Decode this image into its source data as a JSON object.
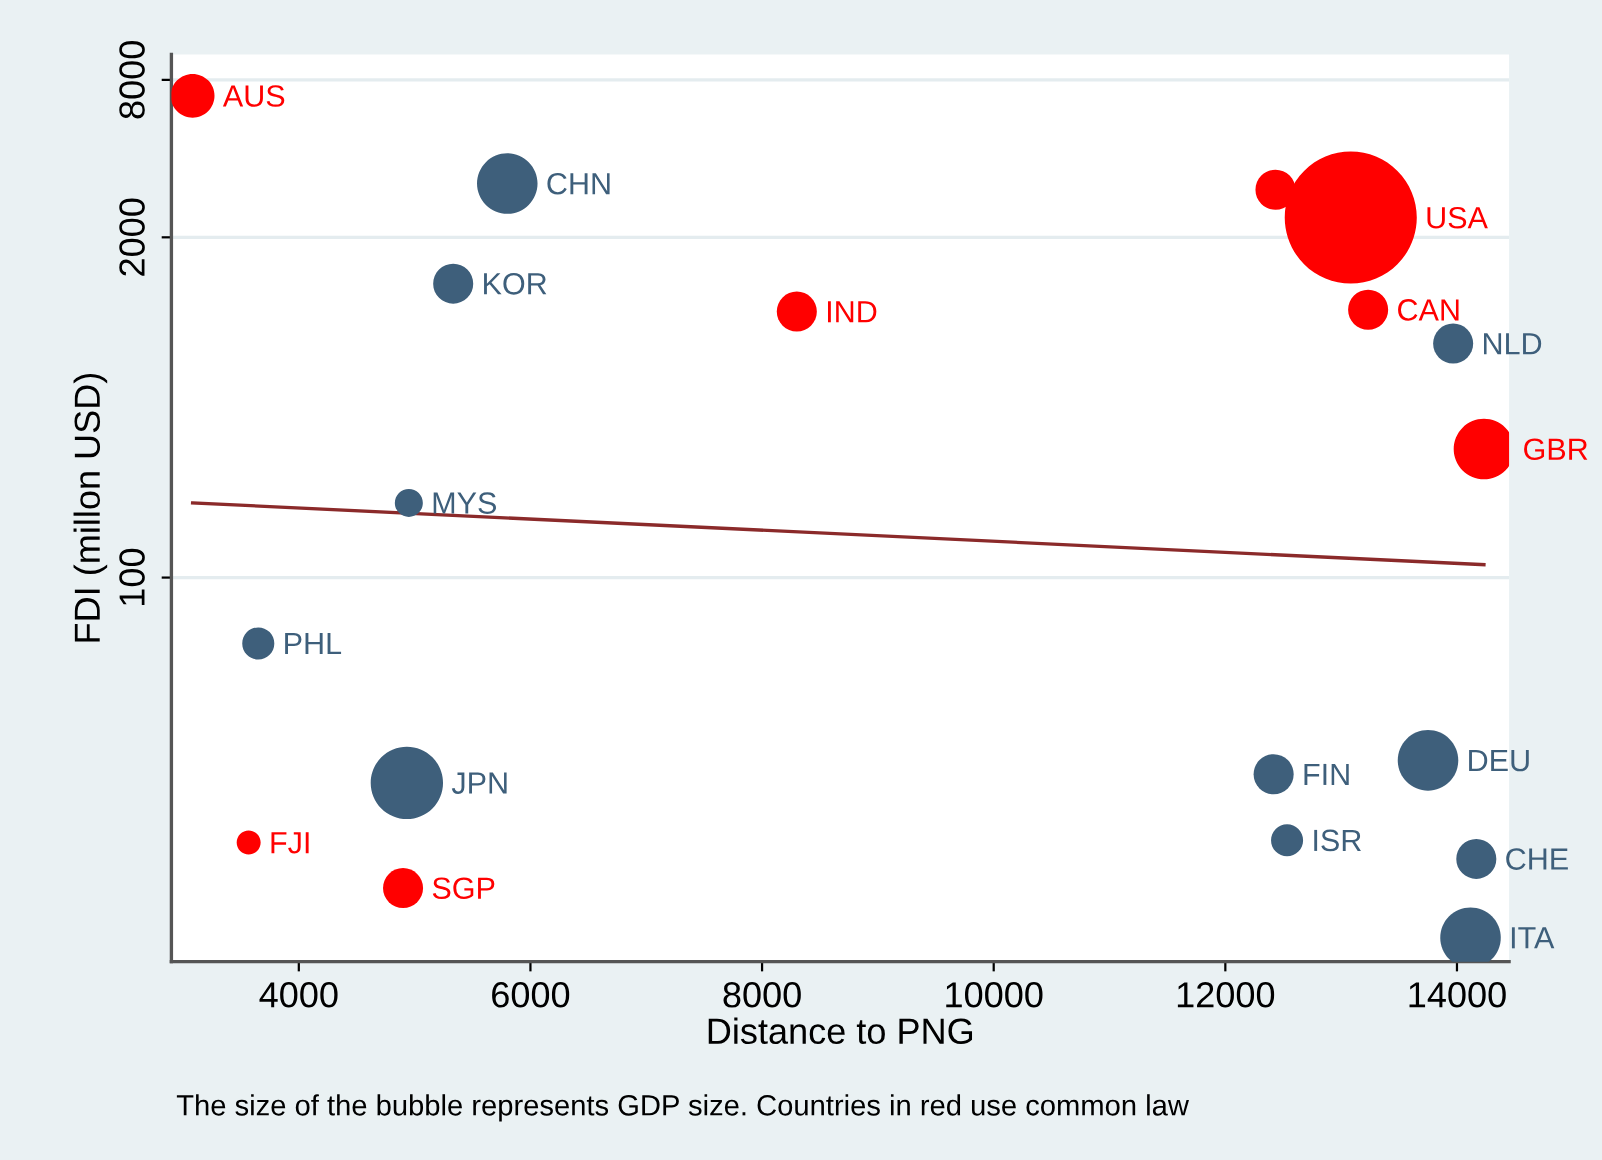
{
  "chart_data": {
    "type": "bubble",
    "xlabel": "Distance to PNG",
    "ylabel": "FDI (millon USD)",
    "xlim": [
      2900,
      14450
    ],
    "xticks": [
      4000,
      6000,
      8000,
      10000,
      12000,
      14000
    ],
    "ylim": [
      3.4,
      10000
    ],
    "yticks": [
      100,
      2000,
      8000
    ],
    "log": "y",
    "grid": "y",
    "series": [
      {
        "color": "#ff0000",
        "x": [
          3083,
          3567,
          4900,
          8300,
          12433,
          13083,
          13233,
          14233
        ],
        "values": [
          6950,
          9.7,
          6.5,
          1040,
          3040,
          2380,
          1057,
          310
        ],
        "sizes": [
          0.11,
          0.033,
          0.092,
          0.092,
          0.092,
          1,
          0.092,
          0.21
        ]
      },
      {
        "color": "#3e5f7b",
        "x": [
          5800,
          5333,
          4950,
          3650,
          4933,
          13967,
          12417,
          13750,
          12533,
          14167,
          14117
        ],
        "values": [
          3210,
          1330,
          193,
          56,
          16.4,
          785,
          17.7,
          20,
          9.9,
          8.4,
          4.2
        ],
        "sizes": [
          0.21,
          0.092,
          0.045,
          0.059,
          0.3,
          0.092,
          0.092,
          0.21,
          0.059,
          0.092,
          0.21
        ]
      },
      {
        "type": "line",
        "color": "#8b2a2a",
        "x": [
          3083,
          14233
        ],
        "values": [
          193,
          112
        ]
      }
    ],
    "annotations": [
      {
        "text": "AUS",
        "x": 3083,
        "y": 6950
      },
      {
        "text": "FJI",
        "x": 3567,
        "y": 9.7
      },
      {
        "text": "SGP",
        "x": 4900,
        "y": 6.5
      },
      {
        "text": "IND",
        "x": 8300,
        "y": 1040
      },
      {
        "text": "USA",
        "x": 13083,
        "y": 2380
      },
      {
        "text": "CAN",
        "x": 13233,
        "y": 1057
      },
      {
        "text": "GBR",
        "x": 14233,
        "y": 310
      },
      {
        "text": "CHN",
        "x": 5800,
        "y": 3210
      },
      {
        "text": "KOR",
        "x": 5333,
        "y": 1330
      },
      {
        "text": "MYS",
        "x": 4950,
        "y": 193
      },
      {
        "text": "PHL",
        "x": 3650,
        "y": 56
      },
      {
        "text": "JPN",
        "x": 4933,
        "y": 16.4
      },
      {
        "text": "NLD",
        "x": 13967,
        "y": 785
      },
      {
        "text": "FIN",
        "x": 12417,
        "y": 17.7
      },
      {
        "text": "DEU",
        "x": 13750,
        "y": 20
      },
      {
        "text": "ISR",
        "x": 12533,
        "y": 9.9
      },
      {
        "text": "CHE",
        "x": 14167,
        "y": 8.4
      },
      {
        "text": "ITA",
        "x": 14117,
        "y": 4.2
      },
      "The size of the bubble represents GDP size. Countries in red use common law"
    ]
  }
}
